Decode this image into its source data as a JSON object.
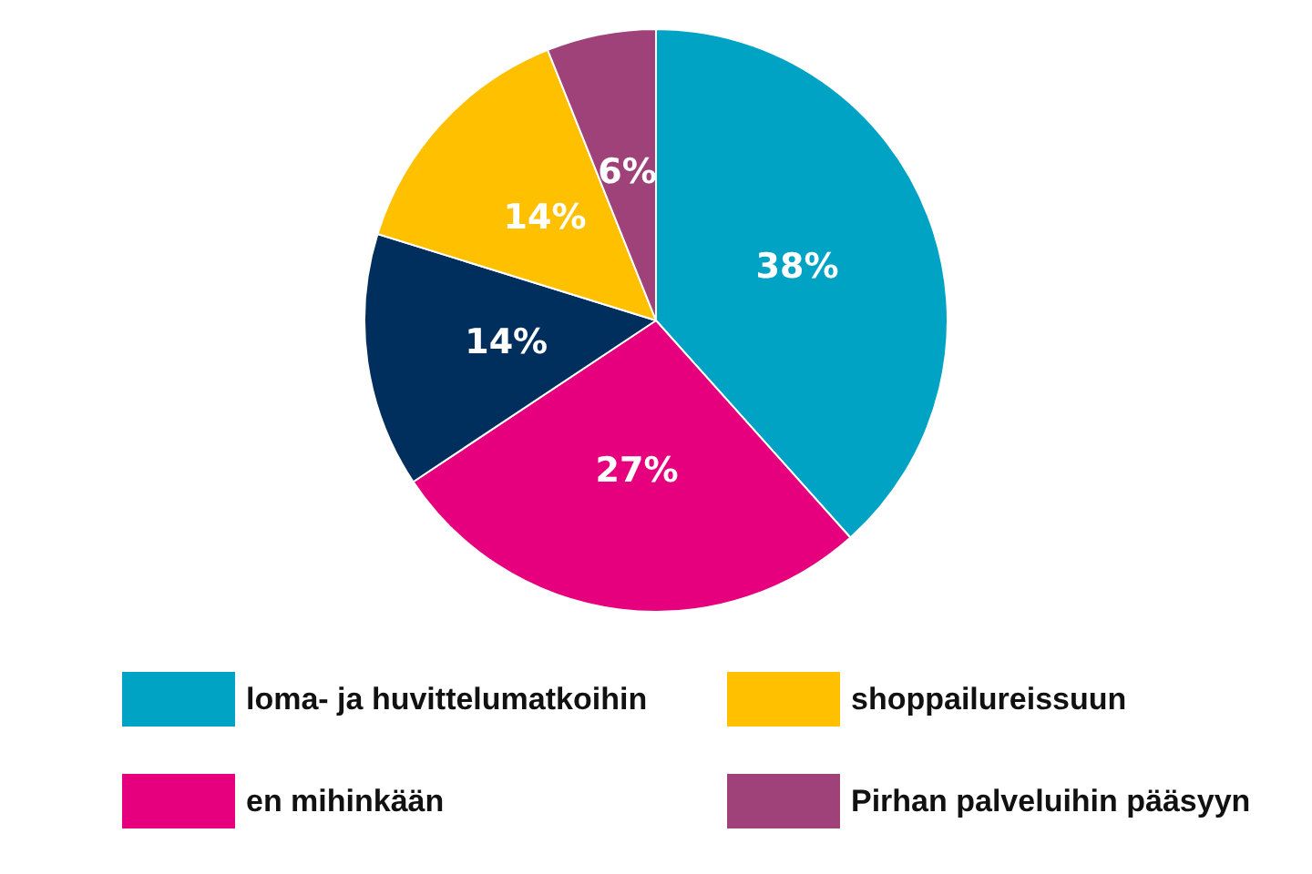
{
  "chart_data": {
    "type": "pie",
    "categories": [
      "loma- ja huvittelumatkoihin",
      "en mihinkään",
      null,
      "shoppailureissuun",
      "Pirhan palveluihin pääsyyn"
    ],
    "values": [
      38,
      27,
      14,
      14,
      6
    ],
    "colors": [
      "#00a3c4",
      "#e6007e",
      "#002e5d",
      "#ffc000",
      "#a0427a"
    ],
    "value_labels": [
      "38%",
      "27%",
      "14%",
      "14%",
      "6%"
    ],
    "legend": "bottom"
  }
}
